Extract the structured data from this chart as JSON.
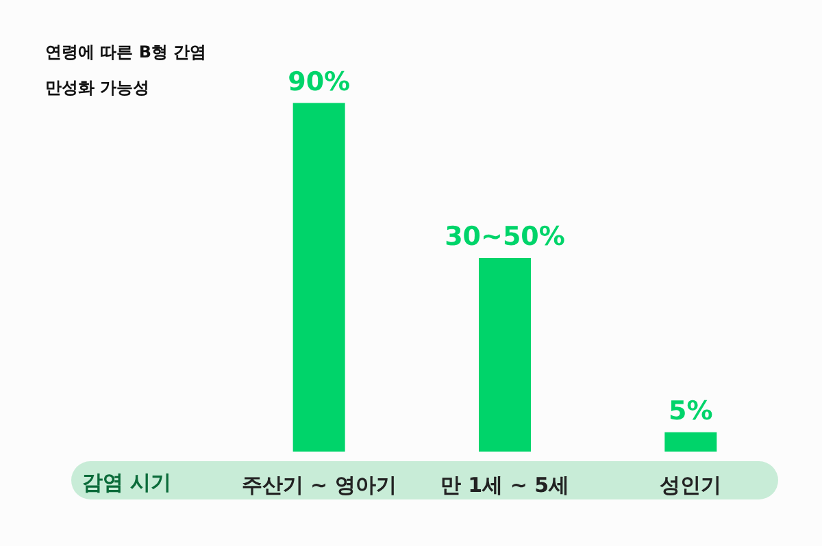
{
  "chart_data": {
    "type": "bar",
    "title": "연령에 따른 B형 간염\n만성화 가능성",
    "xlabel": "감염 시기",
    "categories": [
      "주산기 ~ 영아기",
      "만 1세 ~ 5세",
      "성인기"
    ],
    "values": [
      90,
      50,
      5
    ],
    "value_labels": [
      "90%",
      "30~50%",
      "5%"
    ],
    "color": "#00d46a"
  }
}
